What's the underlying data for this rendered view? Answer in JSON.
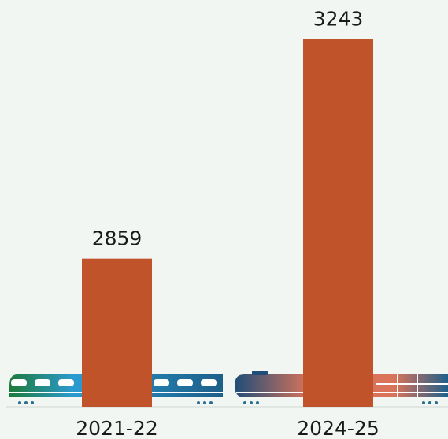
{
  "chart_data": {
    "type": "bar",
    "categories": [
      "2021-22",
      "2024-25"
    ],
    "values": [
      2859,
      3243
    ],
    "color": "#c0532a",
    "ylim": [
      2600,
      3300
    ]
  }
}
